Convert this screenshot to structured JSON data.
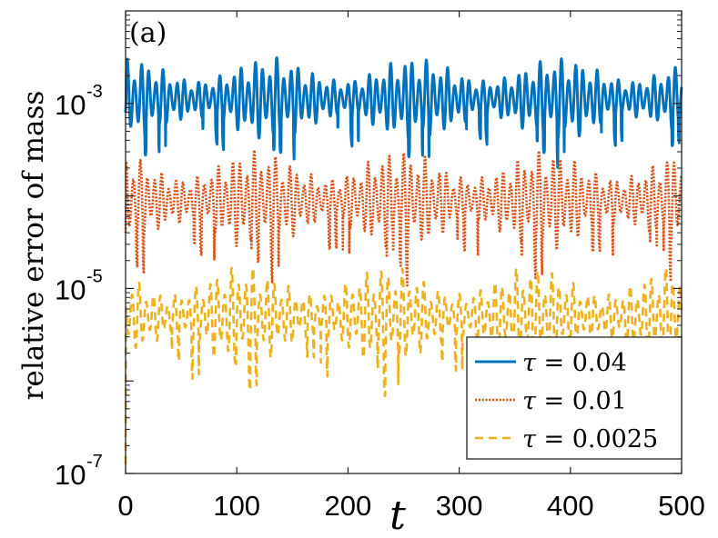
{
  "chart_data": {
    "type": "line",
    "panel_label": "(a)",
    "xlabel": "t",
    "ylabel": "relative error of mass",
    "xlim": [
      0,
      500
    ],
    "ylim_log10": [
      -7,
      -2
    ],
    "yscale": "log",
    "x_ticks": [
      "0",
      "100",
      "200",
      "300",
      "400",
      "500"
    ],
    "y_ticks": [
      {
        "base": "10",
        "exponent": "-3"
      },
      {
        "base": "10",
        "exponent": "-5"
      },
      {
        "base": "10",
        "exponent": "-7"
      }
    ],
    "legend_location": "bottom-right",
    "series": [
      {
        "name": "τ = 0.04",
        "symbol": "τ",
        "value_text": " = 0.04",
        "color": "#0072BD",
        "style": "solid",
        "center_log10": -2.95,
        "amplitude_log10": 0.45,
        "start_log10": -3.1
      },
      {
        "name": "τ = 0.01",
        "symbol": "τ",
        "value_text": " = 0.01",
        "color": "#D95319",
        "style": "dotted",
        "center_log10": -4.05,
        "amplitude_log10": 0.55,
        "start_log10": -4.4
      },
      {
        "name": "τ = 0.0025",
        "symbol": "τ",
        "value_text": " = 0.0025",
        "color": "#EDB120",
        "style": "dashed",
        "center_log10": -5.3,
        "amplitude_log10": 0.55,
        "start_log10": -6.9
      }
    ]
  }
}
